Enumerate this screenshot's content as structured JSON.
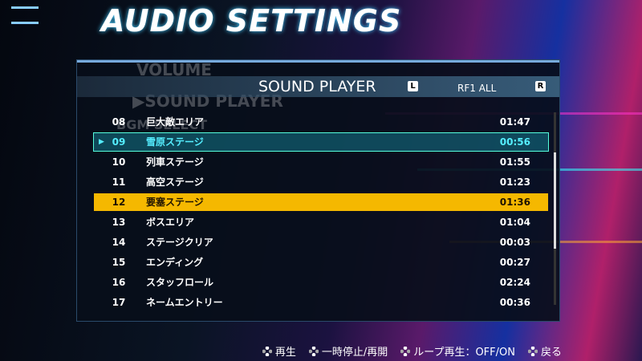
{
  "header": {
    "title": "AUDIO SETTINGS"
  },
  "background_menu": [
    "VOLUME",
    "▶SOUND PLAYER",
    "BGM SELECT"
  ],
  "panel": {
    "title": "SOUND PLAYER",
    "left_key": "L",
    "mode": "RF1 ALL",
    "right_key": "R"
  },
  "tracks": {
    "playing": 1,
    "selected": 4,
    "marker": "▶",
    "rows": [
      [
        "08",
        "巨大敵エリア",
        "01:47"
      ],
      [
        "09",
        "雪原ステージ",
        "00:56"
      ],
      [
        "10",
        "列車ステージ",
        "01:55"
      ],
      [
        "11",
        "高空ステージ",
        "01:23"
      ],
      [
        "12",
        "要塞ステージ",
        "01:36"
      ],
      [
        "13",
        "ボスエリア",
        "01:04"
      ],
      [
        "14",
        "ステージクリア",
        "00:03"
      ],
      [
        "15",
        "エンディング",
        "00:27"
      ],
      [
        "16",
        "スタッフロール",
        "02:24"
      ],
      [
        "17",
        "ネームエントリー",
        "00:36"
      ]
    ]
  },
  "footer": [
    "再生",
    "一時停止/再開",
    "ループ再生：OFF/ON",
    "戻る"
  ]
}
